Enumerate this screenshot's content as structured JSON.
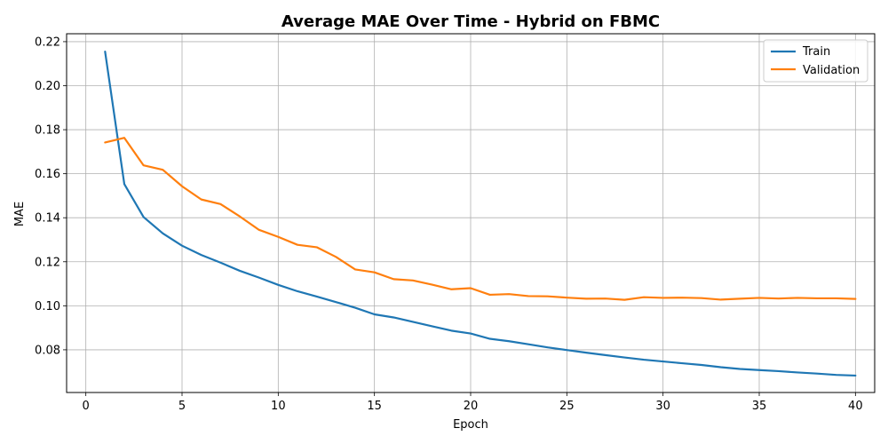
{
  "chart_data": {
    "type": "line",
    "title": "Average MAE Over Time - Hybrid on FBMC",
    "xlabel": "Epoch",
    "ylabel": "MAE",
    "xlim": [
      -1,
      41
    ],
    "ylim": [
      0.0606,
      0.2236
    ],
    "xticks": [
      0,
      5,
      10,
      15,
      20,
      25,
      30,
      35,
      40
    ],
    "yticks": [
      0.08,
      0.1,
      0.12,
      0.14,
      0.16,
      0.18,
      0.2,
      0.22
    ],
    "ytick_labels": [
      "0.08",
      "0.10",
      "0.12",
      "0.14",
      "0.16",
      "0.18",
      "0.20",
      "0.22"
    ],
    "grid": true,
    "legend_position": "top-right",
    "x": [
      1,
      2,
      3,
      4,
      5,
      6,
      7,
      8,
      9,
      10,
      11,
      12,
      13,
      14,
      15,
      16,
      17,
      18,
      19,
      20,
      21,
      22,
      23,
      24,
      25,
      26,
      27,
      28,
      29,
      30,
      31,
      32,
      33,
      34,
      35,
      36,
      37,
      38,
      39,
      40
    ],
    "series": [
      {
        "name": "Train",
        "color": "#1f77b4",
        "values": [
          0.2155,
          0.1553,
          0.1403,
          0.1329,
          0.1273,
          0.1231,
          0.1196,
          0.1159,
          0.1128,
          0.1095,
          0.1066,
          0.1042,
          0.1017,
          0.0991,
          0.0961,
          0.0947,
          0.0927,
          0.0907,
          0.0887,
          0.0874,
          0.085,
          0.0839,
          0.0825,
          0.0811,
          0.0799,
          0.0787,
          0.0776,
          0.0765,
          0.0755,
          0.0747,
          0.0739,
          0.0731,
          0.0721,
          0.0713,
          0.0708,
          0.0703,
          0.0697,
          0.0692,
          0.0686,
          0.0683
        ]
      },
      {
        "name": "Validation",
        "color": "#ff7f0e",
        "values": [
          0.1742,
          0.1763,
          0.1638,
          0.1618,
          0.1543,
          0.1483,
          0.1462,
          0.1406,
          0.1345,
          0.1313,
          0.1277,
          0.1266,
          0.1222,
          0.1165,
          0.1152,
          0.1121,
          0.1115,
          0.1096,
          0.1075,
          0.108,
          0.105,
          0.1053,
          0.1044,
          0.1043,
          0.1037,
          0.1032,
          0.1033,
          0.1027,
          0.1039,
          0.1036,
          0.1037,
          0.1035,
          0.1028,
          0.1032,
          0.1036,
          0.1033,
          0.1036,
          0.1034,
          0.1034,
          0.1031
        ]
      }
    ]
  }
}
